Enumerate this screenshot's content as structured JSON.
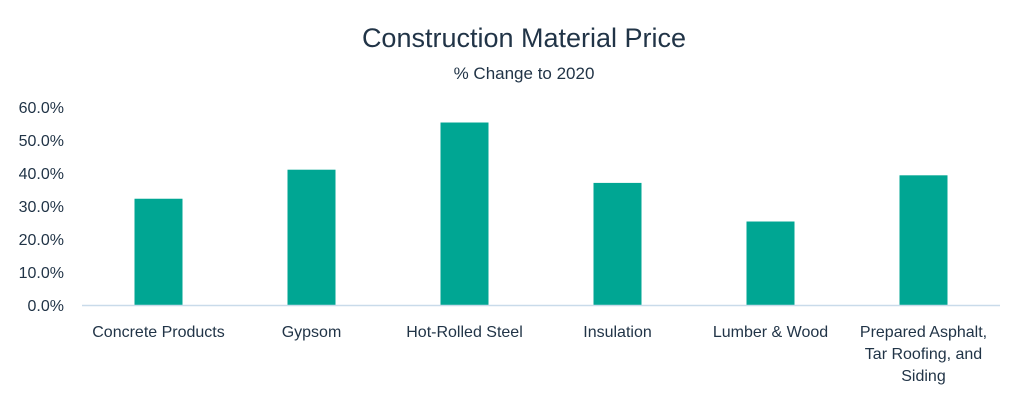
{
  "chart_data": {
    "type": "bar",
    "title": "Construction Material Price",
    "subtitle": "% Change to 2020",
    "xlabel": "",
    "ylabel": "",
    "ylim": [
      0,
      60
    ],
    "yticks": [
      "0.0%",
      "10.0%",
      "20.0%",
      "30.0%",
      "40.0%",
      "50.0%",
      "60.0%"
    ],
    "categories": [
      "Concrete Products",
      "Gypsom",
      "Hot-Rolled Steel",
      "Insulation",
      "Lumber & Wood",
      "Prepared Asphalt, Tar Roofing, and Siding"
    ],
    "category_lines": [
      [
        "Concrete Products"
      ],
      [
        "Gypsom"
      ],
      [
        "Hot-Rolled Steel"
      ],
      [
        "Insulation"
      ],
      [
        "Lumber & Wood"
      ],
      [
        "Prepared Asphalt,",
        "Tar Roofing, and",
        "Siding"
      ]
    ],
    "values": [
      32.2,
      41.0,
      55.3,
      37.0,
      25.3,
      39.3
    ],
    "bar_color": "#00A693",
    "axis_color": "#C9DBEA",
    "text_color": "#213447",
    "grid": false,
    "legend": "none"
  }
}
